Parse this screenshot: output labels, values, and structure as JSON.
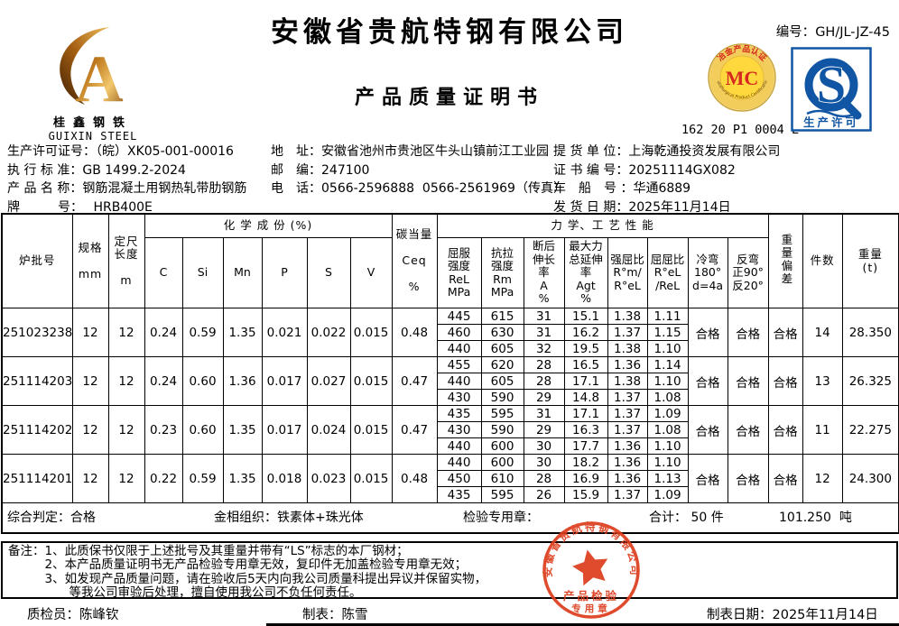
{
  "header": {
    "company": "安徽省贵航特钢有限公司",
    "doc_title": "产品质量证明书",
    "doc_no_label": "编号：",
    "doc_no": "GH/JL-JZ-45",
    "mc": {
      "ring_top": "冶金产品认证",
      "ring_bottom": "Metallurgical Product Certification",
      "mark": "MC",
      "code": "162 20 P1 0004 L"
    },
    "qs": {
      "mark": "S",
      "label": "生产许可"
    }
  },
  "logo": {
    "cn": "桂鑫钢铁",
    "en": "GUIXIN STEEL"
  },
  "info": {
    "left": [
      {
        "label": "生产许可证号：",
        "value": "（皖）XK05-001-00016"
      },
      {
        "label": "执 行 标 准：",
        "value": "GB 1499.2-2024"
      },
      {
        "label": "产 品 名 称：",
        "value": "钢筋混凝土用钢热轧带肋钢筋"
      },
      {
        "label": "牌　　　号：",
        "value": "　 HRB400E"
      }
    ],
    "mid": [
      {
        "label": "地　址：",
        "value": "安徽省池州市贵池区牛头山镇前江工业园"
      },
      {
        "label": "邮　编：",
        "value": "247100"
      },
      {
        "label": "电　话：",
        "value": "0566-2596888  0566-2561969（传真）"
      }
    ],
    "right": [
      {
        "label": "提 货 单 位：",
        "value": "上海乾通投资发展有限公司"
      },
      {
        "label": "证 书 编 号：",
        "value": "20251114GX082"
      },
      {
        "label": "车　船　号 ：",
        "value": "华通6889"
      },
      {
        "label": "发 货 日 期：",
        "value": "2025年11月14日"
      }
    ]
  },
  "table": {
    "columns": {
      "batch": "炉批号",
      "spec": "规格\n\nmm",
      "length": "定尺\n长度\n\nm",
      "chem_group": "化 学 成 份 (%)",
      "chem": [
        "C",
        "Si",
        "Mn",
        "P",
        "S",
        "V"
      ],
      "ceq": "碳当量\n\nCeq\n\n%",
      "mech_group": "力 学、工 艺 性 能",
      "mech": [
        "屈服\n强度\nReL\nMPa",
        "抗拉\n强度\nRm\nMPa",
        "断后\n伸长\n率\nA\n%",
        "最大力\n总延伸\n率\nAgt\n%",
        "强屈比\nR°m/\nR°eL",
        "屈屈比\nR°eL\n/ReL",
        "冷弯\n180°\nd=4a",
        "反弯\n正90°\n反20°"
      ],
      "weight_dev": "重量偏差",
      "pieces": "件数",
      "weight": "重量\n(t)"
    },
    "groups": [
      {
        "batch": "251023238",
        "spec": "12",
        "length": "12",
        "chem": [
          "0.24",
          "0.59",
          "1.35",
          "0.021",
          "0.022",
          "0.015"
        ],
        "ceq": "0.48",
        "mech": [
          [
            "445",
            "615",
            "31",
            "15.1",
            "1.38",
            "1.11"
          ],
          [
            "460",
            "630",
            "31",
            "16.2",
            "1.37",
            "1.15"
          ],
          [
            "440",
            "605",
            "32",
            "19.5",
            "1.38",
            "1.10"
          ]
        ],
        "cold_bend": "合格",
        "reverse_bend": "合格",
        "weight_dev": "合格",
        "pieces": "14",
        "weight": "28.350"
      },
      {
        "batch": "251114203",
        "spec": "12",
        "length": "12",
        "chem": [
          "0.24",
          "0.60",
          "1.36",
          "0.017",
          "0.027",
          "0.015"
        ],
        "ceq": "0.47",
        "mech": [
          [
            "455",
            "620",
            "28",
            "16.5",
            "1.36",
            "1.14"
          ],
          [
            "440",
            "605",
            "28",
            "17.1",
            "1.38",
            "1.10"
          ],
          [
            "430",
            "590",
            "29",
            "14.8",
            "1.37",
            "1.08"
          ]
        ],
        "cold_bend": "合格",
        "reverse_bend": "合格",
        "weight_dev": "合格",
        "pieces": "13",
        "weight": "26.325"
      },
      {
        "batch": "251114202",
        "spec": "12",
        "length": "12",
        "chem": [
          "0.23",
          "0.60",
          "1.35",
          "0.017",
          "0.024",
          "0.015"
        ],
        "ceq": "0.47",
        "mech": [
          [
            "435",
            "595",
            "31",
            "17.1",
            "1.37",
            "1.09"
          ],
          [
            "430",
            "590",
            "29",
            "16.3",
            "1.37",
            "1.08"
          ],
          [
            "440",
            "600",
            "30",
            "17.7",
            "1.36",
            "1.10"
          ]
        ],
        "cold_bend": "合格",
        "reverse_bend": "合格",
        "weight_dev": "合格",
        "pieces": "11",
        "weight": "22.275"
      },
      {
        "batch": "251114201",
        "spec": "12",
        "length": "12",
        "chem": [
          "0.22",
          "0.59",
          "1.35",
          "0.018",
          "0.023",
          "0.015"
        ],
        "ceq": "0.48",
        "mech": [
          [
            "440",
            "600",
            "30",
            "18.2",
            "1.36",
            "1.10"
          ],
          [
            "450",
            "610",
            "28",
            "16.9",
            "1.36",
            "1.13"
          ],
          [
            "435",
            "595",
            "26",
            "15.9",
            "1.37",
            "1.09"
          ]
        ],
        "cold_bend": "合格",
        "reverse_bend": "合格",
        "weight_dev": "合格",
        "pieces": "12",
        "weight": "24.300"
      }
    ]
  },
  "summary": {
    "verdict_label": "综合判定：",
    "verdict": "合格",
    "metallographic_label": "金相组织：",
    "metallographic": "铁素体+珠光体",
    "stamp_label": "检验专用章：",
    "total_label": "合计：",
    "total_pieces": "50",
    "pieces_unit": "件",
    "total_weight": "101.250",
    "weight_unit": "吨"
  },
  "remarks": {
    "label": "备注：",
    "lines": [
      "1、此质保书仅限于上述批号及其重量并带有“LS”标志的本厂钢材；",
      "2、本产品质量证明书无产品检验专用章无效，复印件无加盖检验专用章无效；",
      "3、如发现产品质量问题，请在验收后5天内向我公司质量科提出异议并保留实物，",
      "　　等我公司审验后处理，擅自使用我公司不负任何责任。"
    ]
  },
  "footer": {
    "inspector_label": "质检员：",
    "inspector": "陈峰钦",
    "tabulator_label": "制表：",
    "tabulator": "陈雪",
    "date_label": "制表日期：",
    "date": "2025年11月14日"
  },
  "stamp": {
    "company": "安徽省贵航特钢有限公司",
    "line1": "产品检验",
    "line2": "专用章"
  },
  "colors": {
    "stamp_red": "#dd3c1c",
    "mc_red": "#d6281e",
    "mc_gold": "#e8b93a",
    "qs_blue": "#1156a4"
  }
}
